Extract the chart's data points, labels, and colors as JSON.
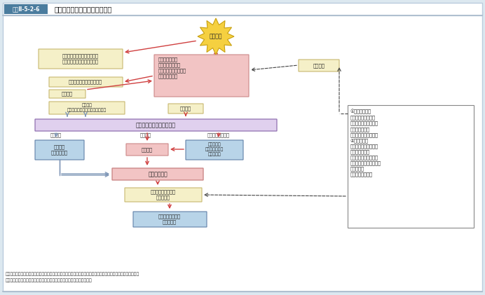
{
  "title_box_text": "図表Ⅱ-5-2-6",
  "title_text": "要請から派遣、撤収までの流れ",
  "bg_color": "#dce8f0",
  "note1": "（注１）　即応予備自衛官及び予備自衛官の招集は、防衛大臣が、必要に応じて内閣総理大臣の承認を得て行う。",
  "note2": "（注２）　防衛大臣が即応予備自衛官、予備自衛官の招集を解除すること",
  "pink": "#f2c4c4",
  "yellow": "#f5f0c8",
  "blue_box": "#b8d4e8",
  "purple": "#e0d0ee",
  "red_arr": "#d04040",
  "blue_arr": "#8098b8",
  "dark_arr": "#444444",
  "title_bg": "#4a7c9e",
  "right_box_text": "①　要請の手段\n・通常は文書で要請\n・緊急の場合は口頭、\n　電信又は電話\n　（後に文書を提出）\n②　要請内容\n・災害の情況、派遣を\n　要請する事由\n・派遣を希望する期間\n・派遣を希望する区域、\n　派遣内容\n・その他参考事項"
}
